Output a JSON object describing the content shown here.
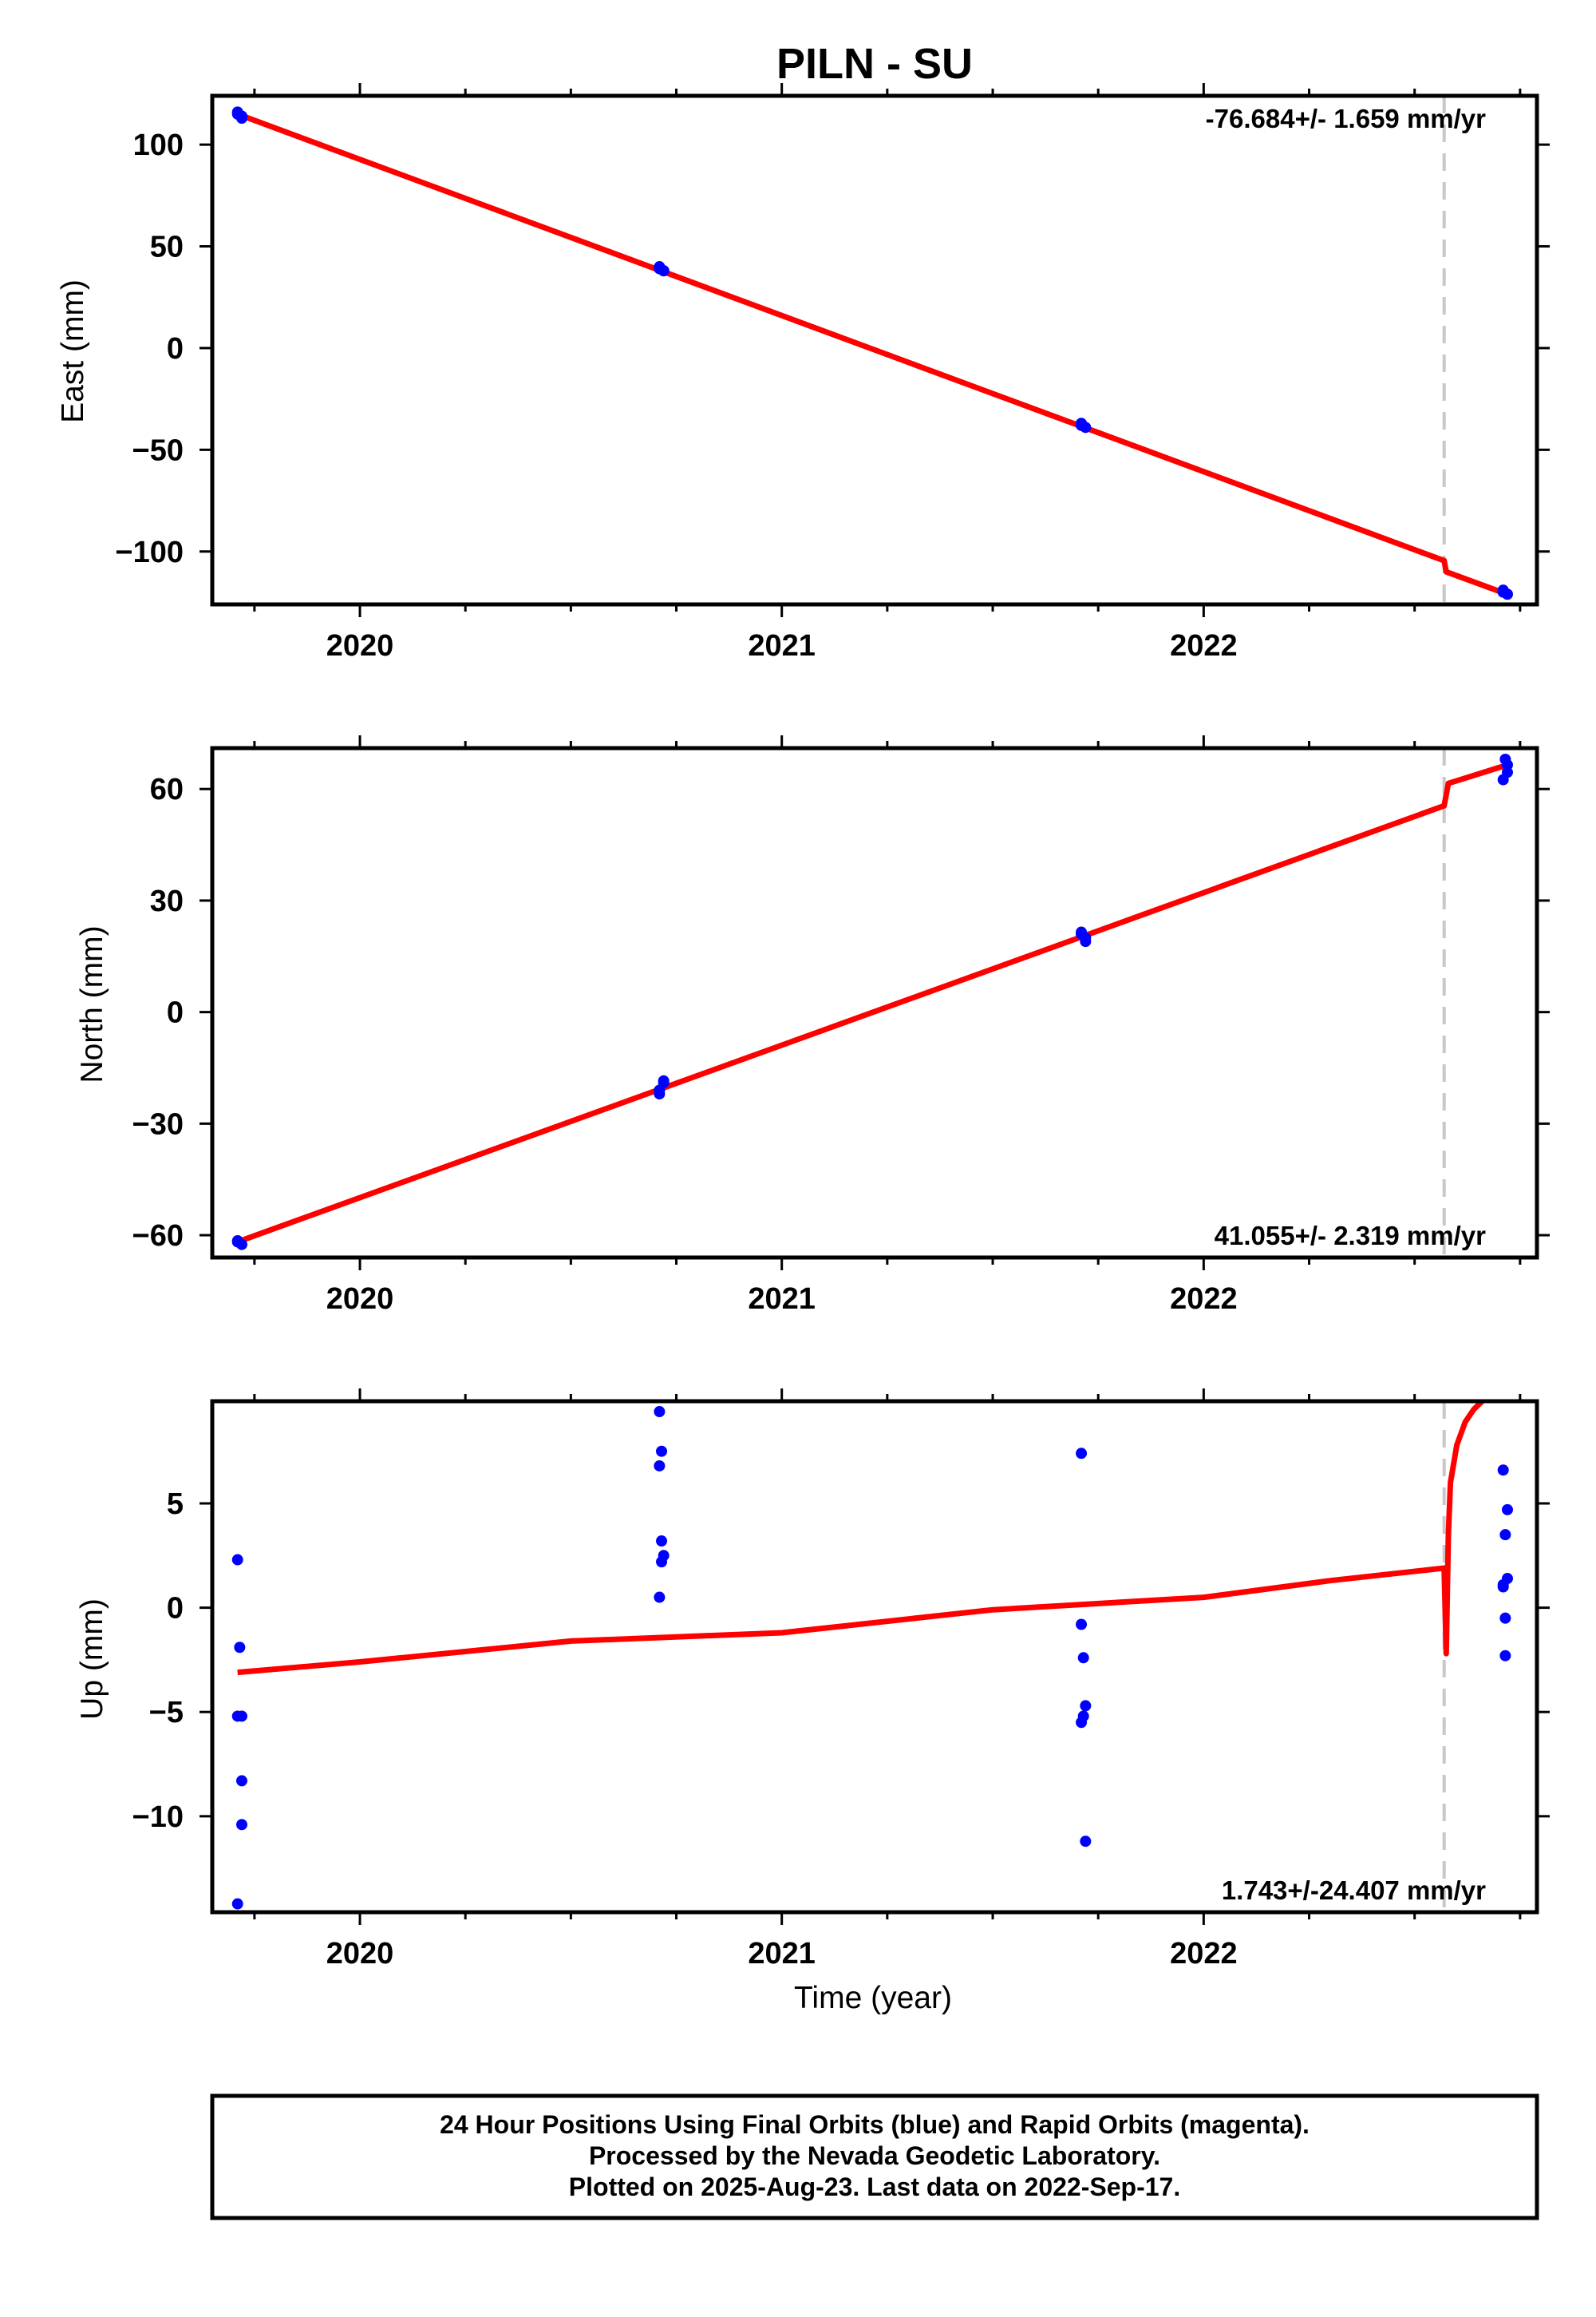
{
  "title": "PILN - SU",
  "colors": {
    "final_orbits": "#0000ff",
    "model": "#ff0000",
    "event_line": "#c8c8c8",
    "frame": "#000000"
  },
  "chart_data": [
    {
      "type": "scatter",
      "panel": "east",
      "ylabel": "East (mm)",
      "xlabel": "",
      "xlim": [
        2019.65,
        2022.79
      ],
      "ylim": [
        -126,
        124
      ],
      "xticks": [
        2020,
        2021,
        2022
      ],
      "yticks": [
        -100,
        -50,
        0,
        50,
        100
      ],
      "rate_text": "-76.684+/- 1.659 mm/yr",
      "rate_position": "top-right",
      "event_line": 2022.57,
      "series": [
        {
          "role": "final_orbits",
          "x": [
            2019.71,
            2019.72,
            2019.71,
            2019.72,
            2020.71,
            2020.72,
            2020.71,
            2020.72,
            2021.71,
            2021.72,
            2021.71,
            2022.71,
            2022.72,
            2022.71
          ],
          "y": [
            116,
            114,
            115,
            113,
            39,
            38,
            40,
            38,
            -38,
            -39,
            -37,
            -120,
            -121,
            -119
          ]
        },
        {
          "role": "model",
          "x": [
            2019.71,
            2022.57,
            2022.575,
            2022.72
          ],
          "y": [
            115,
            -104.5,
            -110,
            -121
          ]
        }
      ]
    },
    {
      "type": "scatter",
      "panel": "north",
      "ylabel": "North (mm)",
      "xlabel": "",
      "xlim": [
        2019.65,
        2022.79
      ],
      "ylim": [
        -66,
        71
      ],
      "xticks": [
        2020,
        2021,
        2022
      ],
      "yticks": [
        -60,
        -30,
        0,
        30,
        60
      ],
      "rate_text": "41.055+/- 2.319 mm/yr",
      "rate_position": "bottom-right",
      "event_line": 2022.57,
      "series": [
        {
          "role": "final_orbits",
          "x": [
            2019.71,
            2019.72,
            2019.71,
            2020.71,
            2020.71,
            2020.72,
            2020.72,
            2021.71,
            2021.72,
            2021.72,
            2021.71,
            2022.71,
            2022.72,
            2022.72,
            2022.715
          ],
          "y": [
            -61.5,
            -62.5,
            -61.8,
            -22,
            -21,
            -19,
            -18.5,
            21,
            19,
            20,
            21.5,
            62.5,
            64.5,
            66.5,
            68
          ]
        },
        {
          "role": "model",
          "x": [
            2019.71,
            2022.57,
            2022.58,
            2022.72
          ],
          "y": [
            -61.8,
            55.5,
            61.5,
            66.5
          ]
        }
      ]
    },
    {
      "type": "scatter",
      "panel": "up",
      "ylabel": "Up (mm)",
      "xlabel": "Time (year)",
      "xlim": [
        2019.65,
        2022.79
      ],
      "ylim": [
        -14.6,
        9.9
      ],
      "xticks": [
        2020,
        2021,
        2022
      ],
      "yticks": [
        -10,
        -5,
        0,
        5
      ],
      "rate_text": "1.743+/-24.407 mm/yr",
      "rate_position": "bottom-right",
      "event_line": 2022.57,
      "series": [
        {
          "role": "final_orbits",
          "x": [
            2019.71,
            2019.715,
            2019.72,
            2019.72,
            2019.71,
            2019.72,
            2019.71,
            2020.71,
            2020.715,
            2020.71,
            2020.715,
            2020.72,
            2020.715,
            2020.71,
            2021.71,
            2021.71,
            2021.715,
            2021.72,
            2021.715,
            2021.71,
            2021.72,
            2022.71,
            2022.72,
            2022.715,
            2022.72,
            2022.71,
            2022.715,
            2022.715,
            2022.71
          ],
          "y": [
            2.3,
            -1.9,
            -5.2,
            -8.3,
            -14.2,
            -10.4,
            -5.2,
            9.4,
            7.5,
            6.8,
            3.2,
            2.5,
            2.2,
            0.5,
            7.4,
            -0.8,
            -2.4,
            -4.7,
            -5.2,
            -5.5,
            -11.2,
            6.6,
            4.7,
            3.5,
            1.4,
            1.1,
            -0.5,
            -2.3,
            1.0
          ]
        },
        {
          "role": "model",
          "x": [
            2019.71,
            2020.0,
            2020.5,
            2021.0,
            2021.5,
            2022.0,
            2022.3,
            2022.57,
            2022.575,
            2022.58,
            2022.585,
            2022.6,
            2022.62,
            2022.64,
            2022.66
          ],
          "y": [
            -3.1,
            -2.6,
            -1.6,
            -1.2,
            -0.1,
            0.5,
            1.3,
            1.9,
            -2.2,
            3.5,
            6.0,
            7.8,
            8.9,
            9.5,
            9.9
          ]
        }
      ]
    }
  ],
  "footer": {
    "line1": "24 Hour Positions Using Final Orbits (blue) and Rapid Orbits (magenta).",
    "line2": "Processed by the Nevada Geodetic Laboratory.",
    "line3": "Plotted on 2025-Aug-23. Last data on 2022-Sep-17."
  }
}
